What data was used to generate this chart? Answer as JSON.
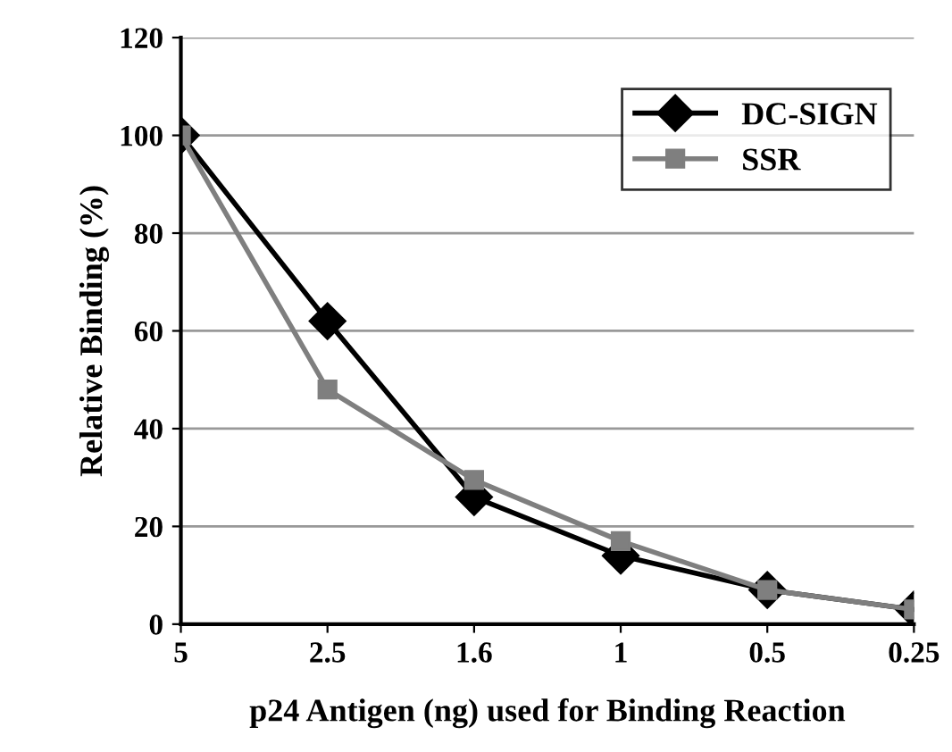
{
  "chart_data": {
    "type": "line",
    "xlabel": "p24 Antigen (ng) used for Binding Reaction",
    "ylabel": "Relative Binding (%)",
    "categories": [
      "5",
      "2.5",
      "1.6",
      "1",
      "0.5",
      "0.25"
    ],
    "series": [
      {
        "name": "DC-SIGN",
        "color": "#000000",
        "marker": "diamond",
        "values": [
          100,
          62,
          26,
          14,
          7,
          3
        ]
      },
      {
        "name": "SSR",
        "color": "#7f7f7f",
        "marker": "square",
        "values": [
          100,
          48,
          29.5,
          17,
          7,
          3
        ]
      }
    ],
    "ylim": [
      0,
      120
    ],
    "yticks": [
      0,
      20,
      40,
      60,
      80,
      100,
      120
    ],
    "grid": "y",
    "legend": "top right",
    "line_style": "solid"
  }
}
